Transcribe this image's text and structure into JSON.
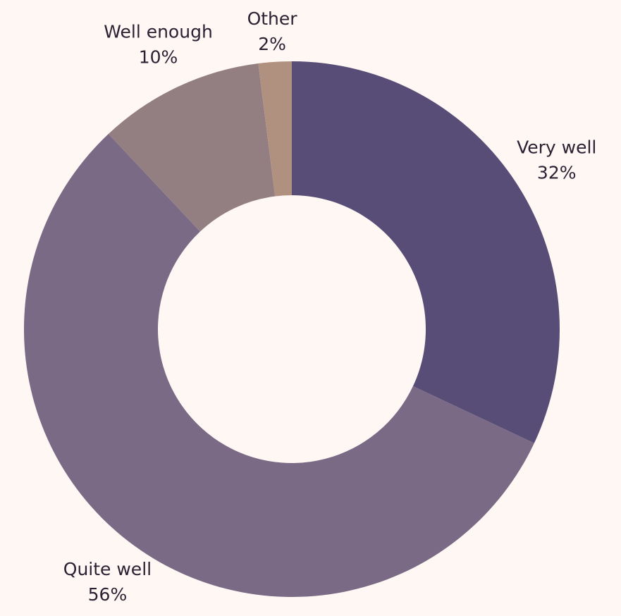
{
  "chart_data": {
    "type": "donut",
    "categories": [
      "Very well",
      "Quite well",
      "Well enough",
      "Other"
    ],
    "values": [
      32,
      56,
      10,
      2
    ],
    "value_labels": [
      "32%",
      "56%",
      "10%",
      "2%"
    ],
    "colors": [
      "#574d77",
      "#7a6a85",
      "#937f82",
      "#b0907f"
    ]
  }
}
